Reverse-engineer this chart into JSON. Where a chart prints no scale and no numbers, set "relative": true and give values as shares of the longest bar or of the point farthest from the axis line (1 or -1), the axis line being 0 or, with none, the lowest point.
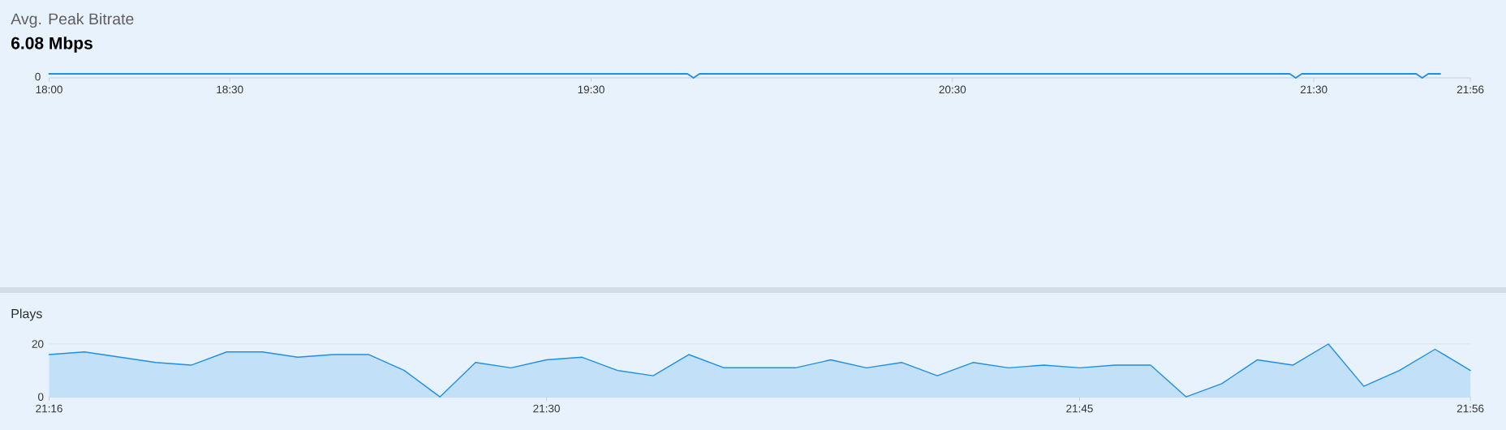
{
  "chart_data": [
    {
      "type": "line",
      "title": "Avg. Peak Bitrate",
      "subtitle": "6.08 Mbps",
      "relative": true,
      "x": [
        18,
        19.7667,
        19.7833,
        19.8,
        21.4333,
        21.45,
        21.4667,
        21.7833,
        21.8,
        21.8167,
        21.85
      ],
      "values": [
        1,
        1,
        0,
        1,
        1,
        0,
        1,
        1,
        0,
        1,
        1
      ],
      "color": "#1e8fe6",
      "xlim": [
        18,
        21.9333
      ],
      "xticks": [
        {
          "value": 18,
          "label": "18:00"
        },
        {
          "value": 18.5,
          "label": "18:30"
        },
        {
          "value": 19.5,
          "label": "19:30"
        },
        {
          "value": 20.5,
          "label": "20:30"
        },
        {
          "value": 21.5,
          "label": "21:30"
        },
        {
          "value": 21.9333,
          "label": "21:56"
        }
      ],
      "annotations": [
        {
          "text": "0",
          "x": 18,
          "y": 0
        }
      ]
    },
    {
      "type": "area",
      "title": "Plays",
      "x": [
        21.2667,
        21.2833,
        21.3,
        21.3167,
        21.3333,
        21.35,
        21.3667,
        21.3833,
        21.4,
        21.4167,
        21.4333,
        21.45,
        21.4667,
        21.4833,
        21.5,
        21.5167,
        21.5333,
        21.55,
        21.5667,
        21.5833,
        21.6,
        21.6167,
        21.6333,
        21.65,
        21.6667,
        21.6833,
        21.7,
        21.7167,
        21.7333,
        21.75,
        21.7667,
        21.7833,
        21.8,
        21.8167,
        21.8333,
        21.85,
        21.8667,
        21.8833,
        21.9,
        21.9167,
        21.9333
      ],
      "values": [
        16,
        17,
        15,
        13,
        12,
        17,
        17,
        15,
        16,
        16,
        10,
        0,
        13,
        11,
        14,
        15,
        10,
        8,
        16,
        11,
        11,
        11,
        14,
        11,
        13,
        8,
        13,
        11,
        12,
        11,
        12,
        12,
        0,
        5,
        14,
        12,
        20,
        4,
        10,
        18,
        10
      ],
      "color": "#1e8fe6",
      "xlim": [
        21.2667,
        21.9333
      ],
      "xticks": [
        {
          "value": 21.2667,
          "label": "21:16"
        },
        {
          "value": 21.5,
          "label": "21:30"
        },
        {
          "value": 21.75,
          "label": "21:45"
        },
        {
          "value": 21.9333,
          "label": "21:56"
        }
      ],
      "ylim": [
        0,
        20
      ],
      "yticks": [
        0,
        20
      ],
      "grid": "y"
    }
  ]
}
